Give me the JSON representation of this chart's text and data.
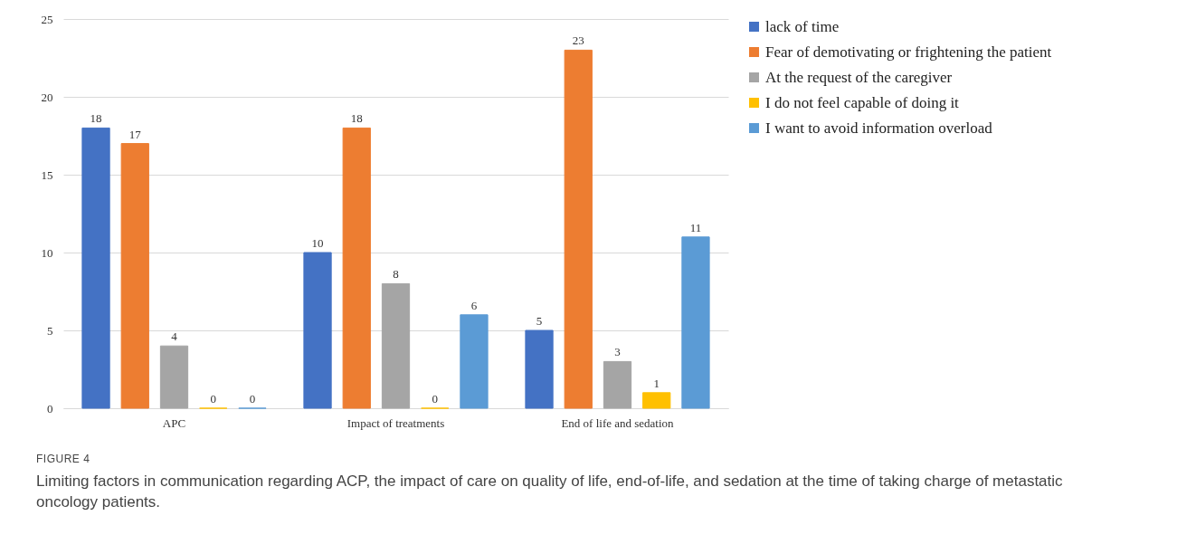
{
  "chart_data": {
    "type": "bar",
    "categories": [
      "APC",
      "Impact of treatments",
      "End of life and sedation"
    ],
    "series": [
      {
        "name": "lack of time",
        "color": "#4472c4",
        "values": [
          18,
          10,
          5
        ]
      },
      {
        "name": "Fear of demotivating or frightening the patient",
        "color": "#ed7d31",
        "values": [
          17,
          18,
          23
        ]
      },
      {
        "name": "At the request of the caregiver",
        "color": "#a5a5a5",
        "values": [
          4,
          8,
          3
        ]
      },
      {
        "name": "I do not feel capable of doing it",
        "color": "#ffc000",
        "values": [
          0,
          0,
          1
        ]
      },
      {
        "name": "I want to avoid information overload",
        "color": "#5b9bd5",
        "values": [
          0,
          6,
          11
        ]
      }
    ],
    "ylim": [
      0,
      25
    ],
    "yticks": [
      0,
      5,
      10,
      15,
      20,
      25
    ],
    "grid": "y",
    "legend": "right",
    "data_labels": true,
    "annotations": [
      "FIGURE 4",
      "Limiting factors in communication regarding ACP, the impact of care on quality of life, end-of-life, and sedation at the time of taking charge of metastatic oncology patients."
    ]
  }
}
